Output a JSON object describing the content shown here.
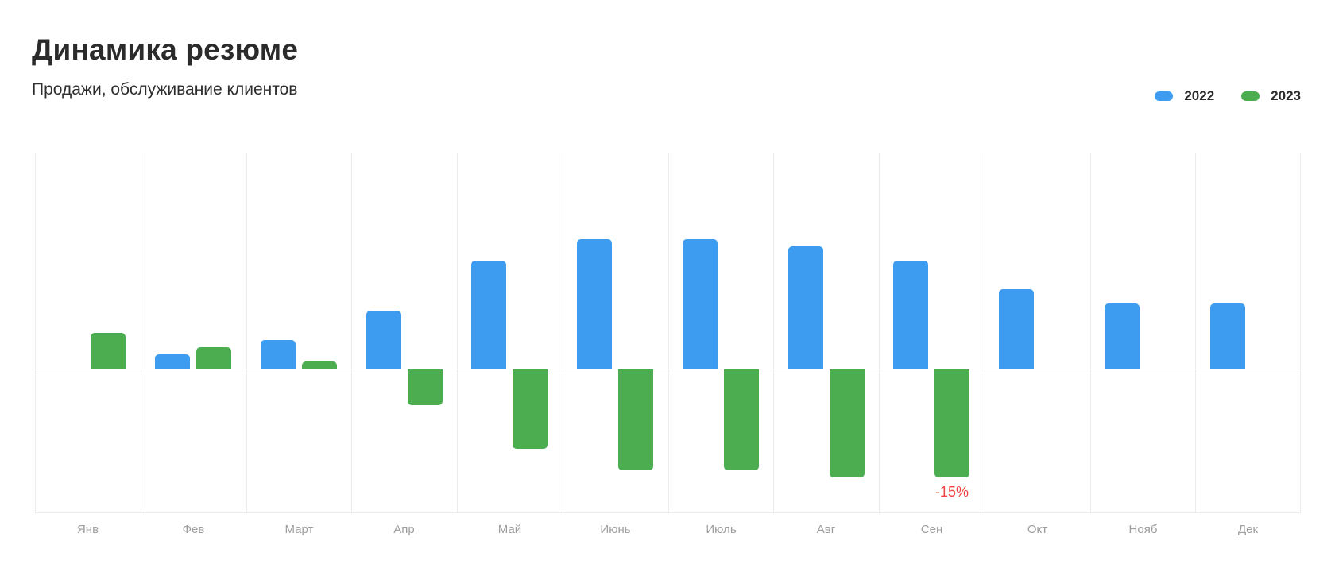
{
  "header": {
    "title": "Динамика резюме",
    "subtitle": "Продажи, обслуживание клиентов"
  },
  "legend": [
    {
      "label": "2022",
      "color": "#3d9cf0"
    },
    {
      "label": "2023",
      "color": "#4bad50"
    }
  ],
  "chart_data": {
    "type": "bar",
    "title": "Динамика резюме",
    "subtitle": "Продажи, обслуживание клиентов",
    "categories": [
      "Янв",
      "Фев",
      "Март",
      "Апр",
      "Май",
      "Июнь",
      "Июль",
      "Авг",
      "Сен",
      "Окт",
      "Нояб",
      "Дек"
    ],
    "series": [
      {
        "name": "2022",
        "color": "#3d9cf0",
        "values": [
          null,
          2,
          4,
          8,
          15,
          18,
          18,
          17,
          15,
          11,
          9,
          9
        ]
      },
      {
        "name": "2023",
        "color": "#4bad50",
        "values": [
          5,
          3,
          1,
          -5,
          -11,
          -14,
          -14,
          -15,
          -15,
          null,
          null,
          null
        ]
      }
    ],
    "unit": "percent",
    "ylim": [
      -20,
      30
    ],
    "grid": "vertical-only",
    "zero_line": true,
    "legend_position": "top-right",
    "axis_label_color": "#9e9e9e",
    "annotation": {
      "text": "-15%",
      "month": "Сен",
      "series": "2023",
      "color": "#ef4444"
    }
  }
}
